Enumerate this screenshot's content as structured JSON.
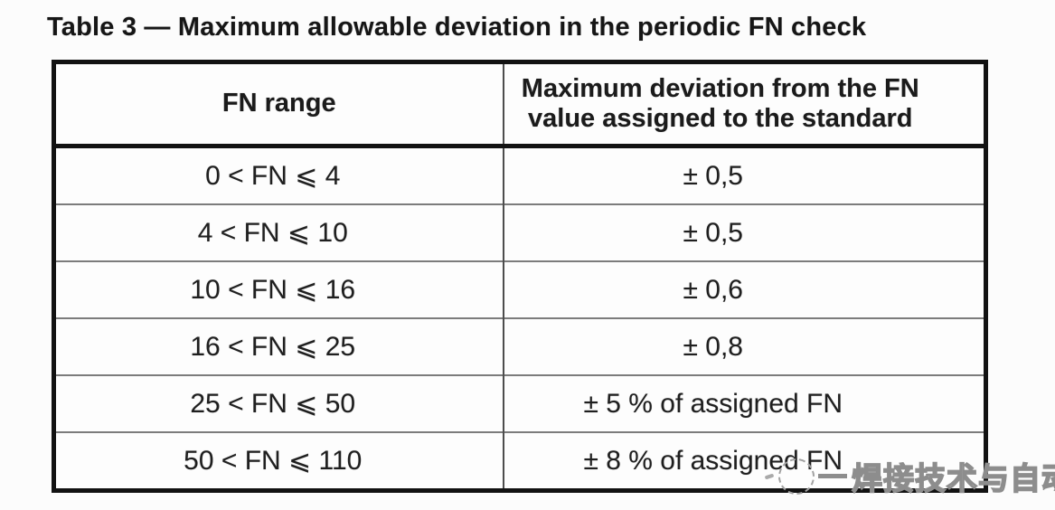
{
  "page": {
    "title": "Table 3 — Maximum allowable deviation in the periodic FN check"
  },
  "table": {
    "col_headers": [
      "FN range",
      "Maximum deviation from the FN value assigned to the standard"
    ],
    "rows": [
      {
        "range": "0 < FN ⩽ 4",
        "deviation": "± 0,5"
      },
      {
        "range": "4 < FN ⩽ 10",
        "deviation": "± 0,5"
      },
      {
        "range": "10 < FN ⩽ 16",
        "deviation": "± 0,6"
      },
      {
        "range": "16 < FN ⩽ 25",
        "deviation": "± 0,8"
      },
      {
        "range": "25 < FN ⩽ 50",
        "deviation": "± 5 % of assigned FN"
      },
      {
        "range": "50 < FN ⩽ 110",
        "deviation": "± 8 % of assigned FN"
      }
    ]
  },
  "watermark": {
    "text": "焊接技术与自动化",
    "logo": "dashed-circle-logo"
  },
  "colors": {
    "outer_border": "#121212",
    "grid_line": "#7c7c7c",
    "text": "#1f1f1f",
    "watermark": "#8d8d8d"
  }
}
